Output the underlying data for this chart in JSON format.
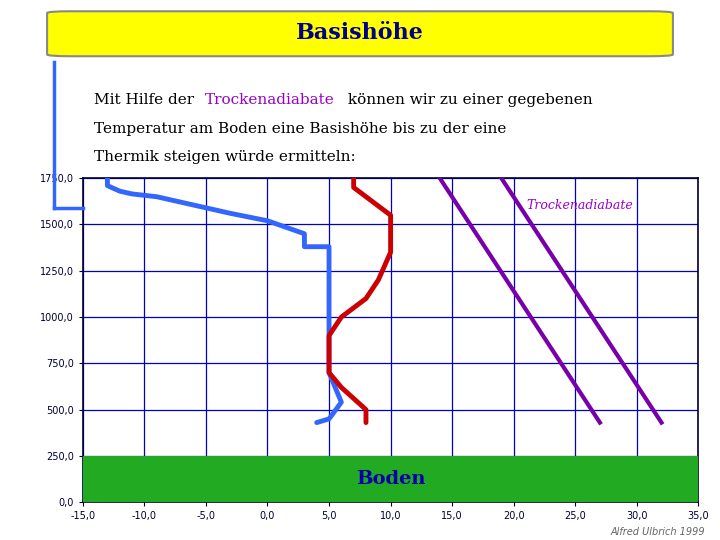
{
  "title": "Basishöhe",
  "title_bg": "#ffff00",
  "title_color": "#00008b",
  "bg_color": "#ffffff",
  "plot_bg": "#ffffff",
  "grid_color": "#0000cc",
  "highlight_color": "#9900cc",
  "xlim": [
    -15,
    35
  ],
  "ylim": [
    0,
    1750
  ],
  "xticks": [
    -15,
    -10,
    -5,
    0,
    5,
    10,
    15,
    20,
    25,
    30,
    35
  ],
  "yticks": [
    0,
    250,
    500,
    750,
    1000,
    1250,
    1500,
    1750
  ],
  "boden_color": "#22aa22",
  "boden_text": "Boden",
  "boden_text_color": "#0000aa",
  "trockenadiabate_label": "Trockenadiabate",
  "trockenadiabate_label_color": "#9900cc",
  "author": "Alfred Ulbrich 1999",
  "blue_line_color": "#3366ff",
  "red_line_color": "#cc0000",
  "purple_color": "#7700aa",
  "decor_line_color": "#3366ff",
  "fig_width": 7.2,
  "fig_height": 5.4,
  "dpi": 100
}
